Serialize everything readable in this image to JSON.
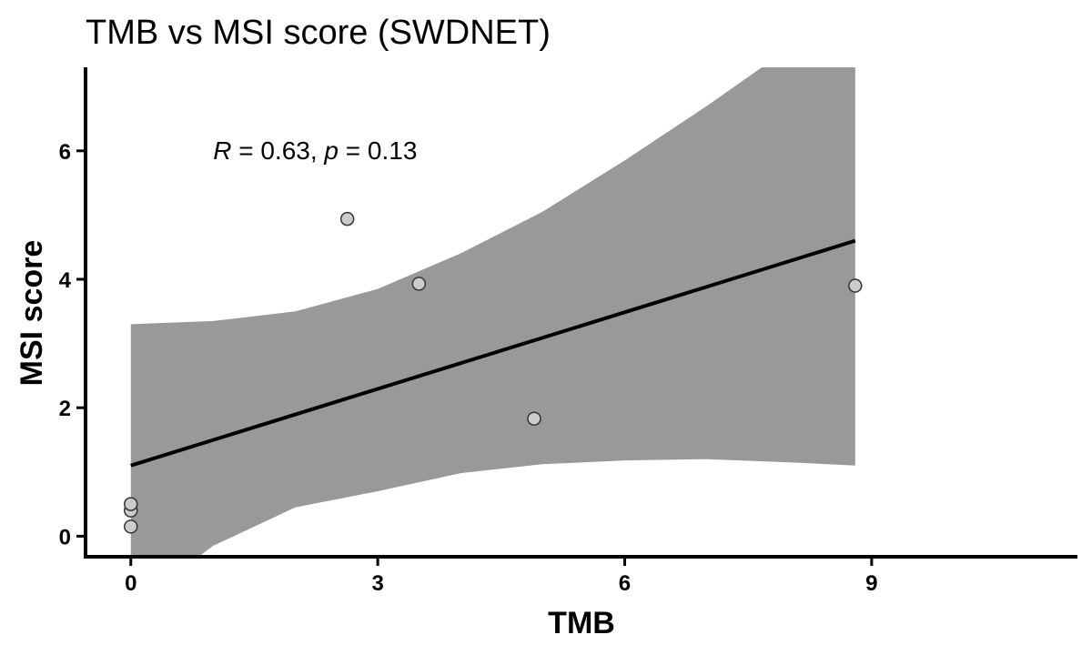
{
  "chart_data": {
    "type": "scatter",
    "title": "TMB vs MSI score (SWDNET)",
    "xlabel": "TMB",
    "ylabel": "MSI score",
    "xlim": [
      -0.55,
      11.5
    ],
    "ylim": [
      -0.32,
      7.3
    ],
    "xticks": [
      0,
      3,
      6,
      9
    ],
    "yticks": [
      0,
      2,
      4,
      6
    ],
    "grid": false,
    "legend": "none",
    "points": [
      {
        "x": 0.0,
        "y": 0.15
      },
      {
        "x": 0.0,
        "y": 0.4
      },
      {
        "x": 0.0,
        "y": 0.5
      },
      {
        "x": 2.63,
        "y": 4.94
      },
      {
        "x": 3.5,
        "y": 3.93
      },
      {
        "x": 4.9,
        "y": 1.83
      },
      {
        "x": 8.8,
        "y": 3.9
      }
    ],
    "fit_line": {
      "x_start": 0.0,
      "y_start": 1.1,
      "x_end": 8.8,
      "y_end": 4.6
    },
    "confidence_band": {
      "upper": [
        {
          "x": 0.0,
          "y": 3.3
        },
        {
          "x": 1.0,
          "y": 3.35
        },
        {
          "x": 2.0,
          "y": 3.5
        },
        {
          "x": 3.0,
          "y": 3.85
        },
        {
          "x": 4.0,
          "y": 4.4
        },
        {
          "x": 5.0,
          "y": 5.05
        },
        {
          "x": 6.0,
          "y": 5.85
        },
        {
          "x": 7.0,
          "y": 6.7
        },
        {
          "x": 8.0,
          "y": 7.6
        },
        {
          "x": 8.8,
          "y": 8.3
        }
      ],
      "lower": [
        {
          "x": 0.0,
          "y": -1.1
        },
        {
          "x": 1.0,
          "y": -0.15
        },
        {
          "x": 2.0,
          "y": 0.45
        },
        {
          "x": 3.0,
          "y": 0.7
        },
        {
          "x": 4.0,
          "y": 0.98
        },
        {
          "x": 5.0,
          "y": 1.12
        },
        {
          "x": 6.0,
          "y": 1.18
        },
        {
          "x": 7.0,
          "y": 1.2
        },
        {
          "x": 8.0,
          "y": 1.15
        },
        {
          "x": 8.8,
          "y": 1.1
        }
      ]
    },
    "annotation": {
      "r_label": "R",
      "r_value": " = 0.63, ",
      "p_label": "p",
      "p_value": " = 0.13",
      "x": 1.0,
      "y": 6.0
    },
    "colors": {
      "band": "#999999",
      "line": "#000000",
      "point_fill": "#cccccc",
      "point_stroke": "#333333",
      "axis": "#000000"
    }
  }
}
